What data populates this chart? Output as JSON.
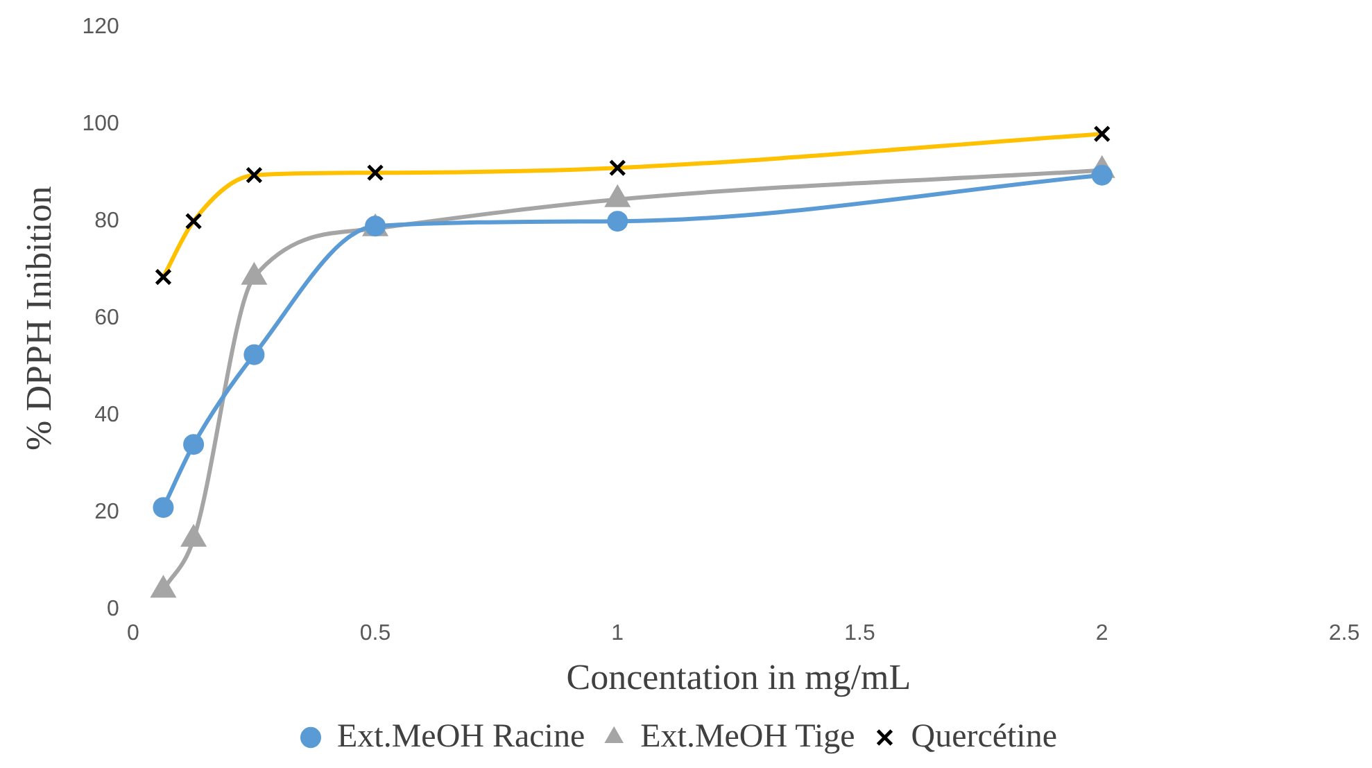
{
  "chart_data": {
    "type": "line",
    "xlabel": "Concentation in mg/mL",
    "ylabel": "% DPPH Inibition",
    "x": [
      0.0625,
      0.125,
      0.25,
      0.5,
      1,
      2
    ],
    "xlim": [
      0,
      2.5
    ],
    "xticks": [
      0,
      0.5,
      1,
      1.5,
      2,
      2.5
    ],
    "ylim": [
      0,
      120
    ],
    "yticks": [
      0,
      20,
      40,
      60,
      80,
      100,
      120
    ],
    "grid": false,
    "legend": "bottom",
    "line_style": "solid",
    "series": [
      {
        "name": "Ext.MeOH Racine",
        "color": "#5b9bd5",
        "marker": "circle",
        "values": [
          21,
          34,
          52.5,
          79,
          80,
          89.5
        ]
      },
      {
        "name": "Ext.MeOH Tige",
        "color": "#a5a5a5",
        "marker": "triangle",
        "values": [
          4,
          14.5,
          68.5,
          78.5,
          84.5,
          90.5
        ]
      },
      {
        "name": "Quercétine",
        "color": "#ffc000",
        "marker": "cross",
        "values": [
          68.5,
          80,
          89.5,
          90,
          91,
          98
        ]
      }
    ]
  }
}
